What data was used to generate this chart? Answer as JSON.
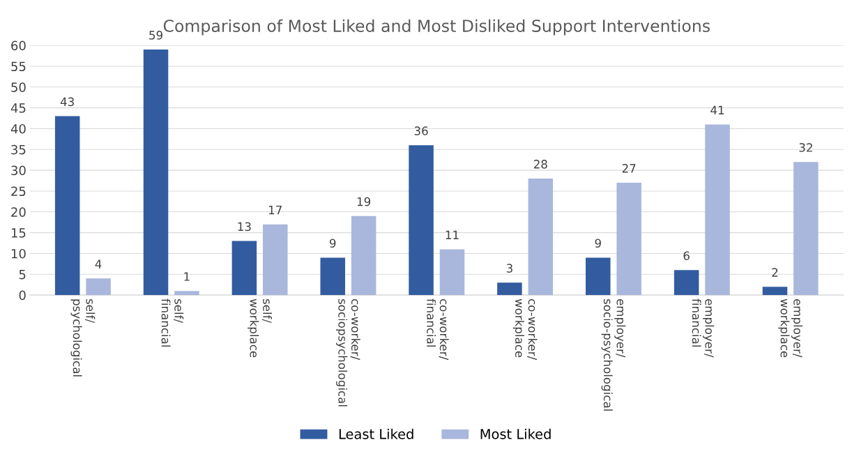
{
  "chart_data": {
    "type": "bar",
    "title": "Comparison of Most Liked and Most Disliked Support Interventions",
    "categories": [
      "self/\npsychological",
      "self/\nfinancial",
      "self/\nworkplace",
      "co-worker/\nsociopsychological",
      "co-worker/\nfinancial",
      "co-worker/\nworkplace",
      "employer/\nsocio-psychological",
      "employer/\nfinancial",
      "employer/\nworkplace"
    ],
    "series": [
      {
        "name": "Least Liked",
        "color": "#335ca0",
        "values": [
          43,
          59,
          13,
          9,
          36,
          3,
          9,
          6,
          2
        ]
      },
      {
        "name": "Most Liked",
        "color": "#a9b7dc",
        "values": [
          4,
          1,
          17,
          19,
          11,
          28,
          27,
          41,
          32
        ]
      }
    ],
    "ylim": [
      0,
      60
    ],
    "yticks": [
      0,
      5,
      10,
      15,
      20,
      25,
      30,
      35,
      40,
      45,
      50,
      55,
      60
    ],
    "grid": "y",
    "legend": "bottom",
    "data_labels": true
  }
}
